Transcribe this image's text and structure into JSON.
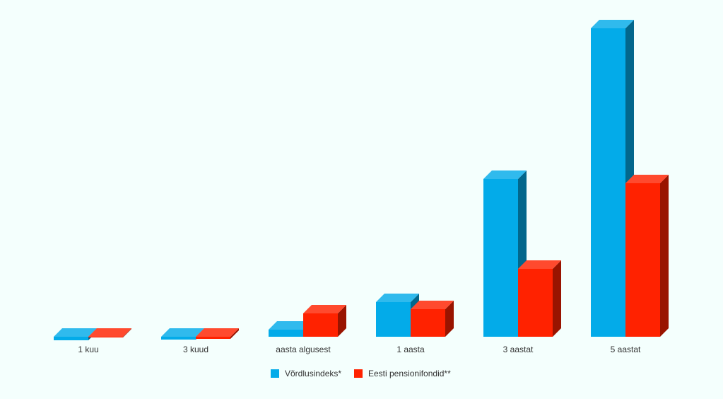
{
  "chart_data": {
    "type": "bar3d",
    "categories": [
      "1 kuu",
      "3 kuud",
      "aasta algusest",
      "1 aasta",
      "3 aastat",
      "5 aastat"
    ],
    "series": [
      {
        "name": "Võrdlusindeks*",
        "color": "#03abe9",
        "values": [
          -0.5,
          -0.4,
          1.0,
          4.9,
          22.3,
          43.6
        ]
      },
      {
        "name": "Eesti pensionifondid**",
        "color": "#ff2200",
        "values": [
          -0.1,
          -0.3,
          3.3,
          3.9,
          9.6,
          21.7
        ]
      }
    ],
    "ylim": [
      -4,
      44.2
    ]
  }
}
